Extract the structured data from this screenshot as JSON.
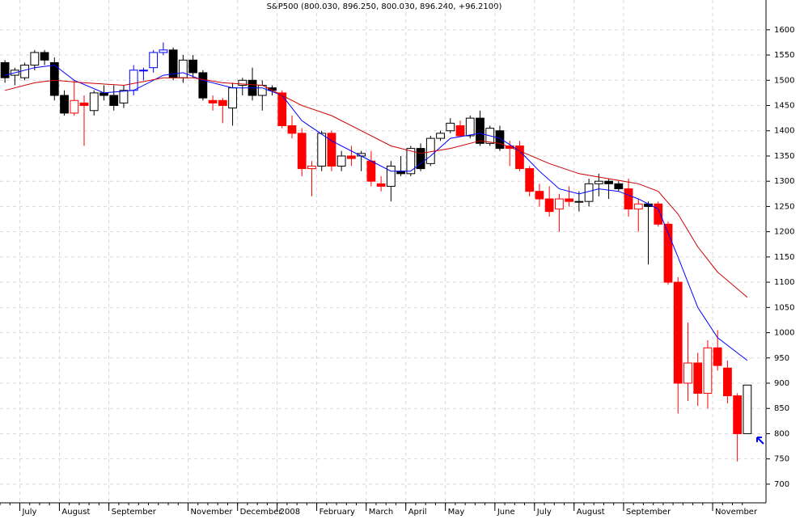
{
  "chart_data": {
    "type": "candlestick",
    "title": "S&P500 (800.030, 896.250, 800.030, 896.240, +96.2100)",
    "categories": [
      null,
      null,
      "July",
      null,
      null,
      null,
      "August",
      null,
      null,
      null,
      null,
      "September",
      null,
      null,
      null,
      null,
      null,
      null,
      null,
      "November",
      null,
      null,
      null,
      null,
      "December",
      null,
      null,
      null,
      "2008",
      null,
      null,
      null,
      "February",
      null,
      null,
      null,
      null,
      "March",
      null,
      null,
      null,
      "April",
      null,
      null,
      null,
      "May",
      null,
      null,
      null,
      null,
      "June",
      null,
      null,
      null,
      "July",
      null,
      null,
      null,
      "August",
      null,
      null,
      null,
      null,
      "September",
      null,
      null,
      null,
      null,
      null,
      null,
      null,
      null,
      "November",
      null,
      null,
      null
    ],
    "open": [
      1535,
      1510,
      1505,
      1530,
      1555,
      1535,
      1470,
      1435,
      1455,
      1440,
      1475,
      1470,
      1455,
      1480,
      1520,
      1525,
      1555,
      1560,
      1505,
      1540,
      1515,
      1460,
      1460,
      1445,
      1490,
      1500,
      1470,
      1485,
      1475,
      1410,
      1395,
      1325,
      1330,
      1395,
      1330,
      1350,
      1350,
      1340,
      1295,
      1290,
      1320,
      1315,
      1365,
      1335,
      1385,
      1400,
      1410,
      1390,
      1425,
      1375,
      1400,
      1370,
      1370,
      1325,
      1280,
      1265,
      1245,
      1265,
      1260,
      1260,
      1295,
      1300,
      1295,
      1285,
      1245,
      1255,
      1255,
      1215,
      1100,
      900,
      940,
      880,
      970,
      930,
      875,
      800.03
    ],
    "high": [
      1540,
      1525,
      1535,
      1560,
      1560,
      1545,
      1480,
      1500,
      1470,
      1480,
      1490,
      1490,
      1490,
      1530,
      1525,
      1560,
      1575,
      1565,
      1550,
      1550,
      1520,
      1470,
      1465,
      1495,
      1505,
      1525,
      1500,
      1490,
      1480,
      1430,
      1405,
      1340,
      1400,
      1400,
      1360,
      1370,
      1360,
      1360,
      1310,
      1340,
      1350,
      1370,
      1375,
      1390,
      1400,
      1425,
      1420,
      1430,
      1440,
      1410,
      1410,
      1380,
      1380,
      1330,
      1295,
      1290,
      1275,
      1290,
      1280,
      1305,
      1315,
      1305,
      1300,
      1305,
      1265,
      1260,
      1260,
      1220,
      1110,
      1020,
      960,
      985,
      1005,
      945,
      880,
      896.25
    ],
    "low": [
      1495,
      1490,
      1500,
      1520,
      1530,
      1460,
      1430,
      1430,
      1370,
      1430,
      1460,
      1440,
      1445,
      1470,
      1500,
      1515,
      1550,
      1500,
      1495,
      1505,
      1460,
      1440,
      1415,
      1410,
      1470,
      1460,
      1440,
      1470,
      1405,
      1385,
      1310,
      1270,
      1320,
      1320,
      1320,
      1330,
      1320,
      1290,
      1280,
      1260,
      1310,
      1310,
      1320,
      1330,
      1380,
      1395,
      1390,
      1385,
      1370,
      1370,
      1360,
      1330,
      1320,
      1270,
      1250,
      1230,
      1200,
      1250,
      1240,
      1250,
      1270,
      1265,
      1280,
      1230,
      1200,
      1135,
      1210,
      1095,
      840,
      865,
      855,
      850,
      925,
      860,
      745,
      800.03
    ],
    "close": [
      1505,
      1520,
      1530,
      1555,
      1540,
      1470,
      1435,
      1460,
      1450,
      1475,
      1470,
      1450,
      1480,
      1520,
      1520,
      1555,
      1560,
      1505,
      1540,
      1515,
      1465,
      1455,
      1450,
      1485,
      1500,
      1470,
      1490,
      1480,
      1410,
      1395,
      1325,
      1330,
      1395,
      1330,
      1350,
      1345,
      1355,
      1300,
      1290,
      1330,
      1315,
      1365,
      1325,
      1385,
      1395,
      1415,
      1390,
      1425,
      1375,
      1405,
      1365,
      1365,
      1325,
      1280,
      1265,
      1240,
      1265,
      1260,
      1260,
      1295,
      1300,
      1295,
      1285,
      1245,
      1255,
      1250,
      1215,
      1100,
      900,
      940,
      880,
      970,
      935,
      875,
      800,
      896.24
    ],
    "colors": [
      "#000000",
      "#000000",
      "#000000",
      "#000000",
      "#000000",
      "#000000",
      "#000000",
      "#ff0000",
      "#ff0000",
      "#000000",
      "#000000",
      "#000000",
      "#000000",
      "#0000ff",
      "#0000ff",
      "#0000ff",
      "#0000ff",
      "#000000",
      "#000000",
      "#000000",
      "#000000",
      "#ff0000",
      "#ff0000",
      "#000000",
      "#000000",
      "#000000",
      "#000000",
      "#000000",
      "#ff0000",
      "#ff0000",
      "#ff0000",
      "#ff0000",
      "#000000",
      "#ff0000",
      "#000000",
      "#ff0000",
      "#000000",
      "#ff0000",
      "#ff0000",
      "#000000",
      "#000000",
      "#000000",
      "#000000",
      "#000000",
      "#000000",
      "#000000",
      "#ff0000",
      "#000000",
      "#000000",
      "#000000",
      "#000000",
      "#ff0000",
      "#ff0000",
      "#ff0000",
      "#ff0000",
      "#ff0000",
      "#ff0000",
      "#ff0000",
      "#000000",
      "#000000",
      "#000000",
      "#000000",
      "#000000",
      "#ff0000",
      "#ff0000",
      "#000000",
      "#ff0000",
      "#ff0000",
      "#ff0000",
      "#ff0000",
      "#ff0000",
      "#ff0000",
      "#ff0000",
      "#ff0000",
      "#ff0000",
      "#000000"
    ],
    "lines": [
      {
        "color": "#0000ff",
        "x": [
          0,
          3,
          5,
          7,
          10,
          13,
          16,
          18,
          20,
          23,
          26,
          28,
          30,
          33,
          36,
          39,
          41,
          43,
          45,
          48,
          50,
          52,
          54,
          56,
          58,
          60,
          62,
          64,
          66,
          68,
          70,
          72,
          75
        ],
        "values": [
          1510,
          1525,
          1530,
          1500,
          1475,
          1480,
          1510,
          1515,
          1500,
          1485,
          1485,
          1470,
          1420,
          1380,
          1350,
          1320,
          1320,
          1350,
          1385,
          1395,
          1385,
          1360,
          1320,
          1285,
          1275,
          1285,
          1280,
          1265,
          1245,
          1150,
          1050,
          990,
          945
        ]
      },
      {
        "color": "#cc0000",
        "x": [
          0,
          3,
          5,
          8,
          12,
          16,
          19,
          22,
          26,
          28,
          30,
          33,
          36,
          39,
          42,
          45,
          48,
          50,
          52,
          55,
          58,
          61,
          64,
          66,
          68,
          70,
          72,
          75
        ],
        "values": [
          1480,
          1495,
          1500,
          1495,
          1490,
          1505,
          1505,
          1495,
          1490,
          1470,
          1450,
          1430,
          1400,
          1370,
          1355,
          1365,
          1380,
          1375,
          1360,
          1335,
          1315,
          1305,
          1295,
          1280,
          1235,
          1170,
          1120,
          1070
        ]
      }
    ],
    "ylim": [
      663,
      1659
    ],
    "yticks": [
      700,
      750,
      800,
      850,
      900,
      950,
      1000,
      1050,
      1100,
      1150,
      1200,
      1250,
      1300,
      1350,
      1400,
      1450,
      1500,
      1550,
      1600
    ],
    "grid": true
  }
}
